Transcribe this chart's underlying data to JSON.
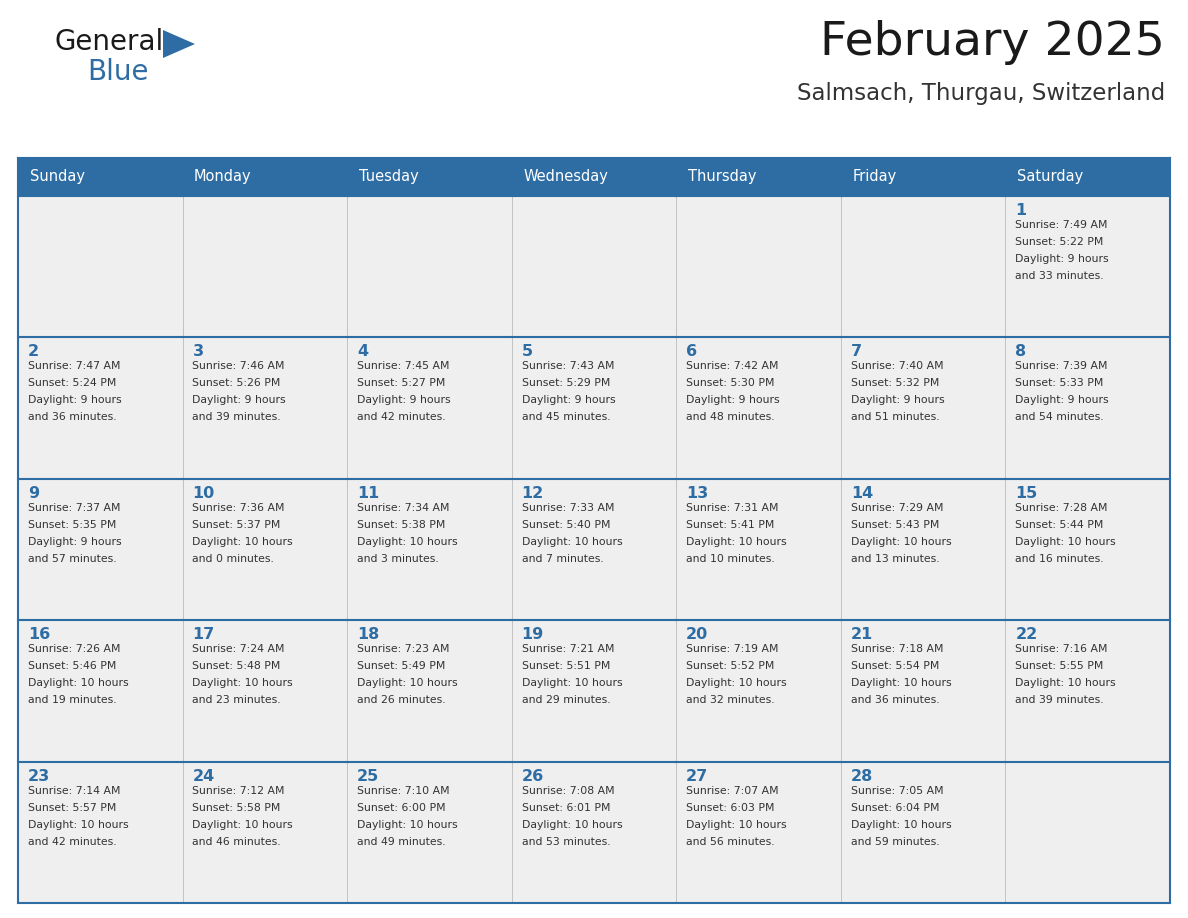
{
  "title": "February 2025",
  "subtitle": "Salmsach, Thurgau, Switzerland",
  "header_bg_color": "#2E6DA4",
  "header_text_color": "#FFFFFF",
  "cell_bg_color": "#EFEFEF",
  "day_number_color": "#2E6DA4",
  "text_color": "#333333",
  "border_color": "#2E6DA4",
  "days_of_week": [
    "Sunday",
    "Monday",
    "Tuesday",
    "Wednesday",
    "Thursday",
    "Friday",
    "Saturday"
  ],
  "weeks": [
    [
      {
        "day": null,
        "info": null
      },
      {
        "day": null,
        "info": null
      },
      {
        "day": null,
        "info": null
      },
      {
        "day": null,
        "info": null
      },
      {
        "day": null,
        "info": null
      },
      {
        "day": null,
        "info": null
      },
      {
        "day": 1,
        "info": "Sunrise: 7:49 AM\nSunset: 5:22 PM\nDaylight: 9 hours\nand 33 minutes."
      }
    ],
    [
      {
        "day": 2,
        "info": "Sunrise: 7:47 AM\nSunset: 5:24 PM\nDaylight: 9 hours\nand 36 minutes."
      },
      {
        "day": 3,
        "info": "Sunrise: 7:46 AM\nSunset: 5:26 PM\nDaylight: 9 hours\nand 39 minutes."
      },
      {
        "day": 4,
        "info": "Sunrise: 7:45 AM\nSunset: 5:27 PM\nDaylight: 9 hours\nand 42 minutes."
      },
      {
        "day": 5,
        "info": "Sunrise: 7:43 AM\nSunset: 5:29 PM\nDaylight: 9 hours\nand 45 minutes."
      },
      {
        "day": 6,
        "info": "Sunrise: 7:42 AM\nSunset: 5:30 PM\nDaylight: 9 hours\nand 48 minutes."
      },
      {
        "day": 7,
        "info": "Sunrise: 7:40 AM\nSunset: 5:32 PM\nDaylight: 9 hours\nand 51 minutes."
      },
      {
        "day": 8,
        "info": "Sunrise: 7:39 AM\nSunset: 5:33 PM\nDaylight: 9 hours\nand 54 minutes."
      }
    ],
    [
      {
        "day": 9,
        "info": "Sunrise: 7:37 AM\nSunset: 5:35 PM\nDaylight: 9 hours\nand 57 minutes."
      },
      {
        "day": 10,
        "info": "Sunrise: 7:36 AM\nSunset: 5:37 PM\nDaylight: 10 hours\nand 0 minutes."
      },
      {
        "day": 11,
        "info": "Sunrise: 7:34 AM\nSunset: 5:38 PM\nDaylight: 10 hours\nand 3 minutes."
      },
      {
        "day": 12,
        "info": "Sunrise: 7:33 AM\nSunset: 5:40 PM\nDaylight: 10 hours\nand 7 minutes."
      },
      {
        "day": 13,
        "info": "Sunrise: 7:31 AM\nSunset: 5:41 PM\nDaylight: 10 hours\nand 10 minutes."
      },
      {
        "day": 14,
        "info": "Sunrise: 7:29 AM\nSunset: 5:43 PM\nDaylight: 10 hours\nand 13 minutes."
      },
      {
        "day": 15,
        "info": "Sunrise: 7:28 AM\nSunset: 5:44 PM\nDaylight: 10 hours\nand 16 minutes."
      }
    ],
    [
      {
        "day": 16,
        "info": "Sunrise: 7:26 AM\nSunset: 5:46 PM\nDaylight: 10 hours\nand 19 minutes."
      },
      {
        "day": 17,
        "info": "Sunrise: 7:24 AM\nSunset: 5:48 PM\nDaylight: 10 hours\nand 23 minutes."
      },
      {
        "day": 18,
        "info": "Sunrise: 7:23 AM\nSunset: 5:49 PM\nDaylight: 10 hours\nand 26 minutes."
      },
      {
        "day": 19,
        "info": "Sunrise: 7:21 AM\nSunset: 5:51 PM\nDaylight: 10 hours\nand 29 minutes."
      },
      {
        "day": 20,
        "info": "Sunrise: 7:19 AM\nSunset: 5:52 PM\nDaylight: 10 hours\nand 32 minutes."
      },
      {
        "day": 21,
        "info": "Sunrise: 7:18 AM\nSunset: 5:54 PM\nDaylight: 10 hours\nand 36 minutes."
      },
      {
        "day": 22,
        "info": "Sunrise: 7:16 AM\nSunset: 5:55 PM\nDaylight: 10 hours\nand 39 minutes."
      }
    ],
    [
      {
        "day": 23,
        "info": "Sunrise: 7:14 AM\nSunset: 5:57 PM\nDaylight: 10 hours\nand 42 minutes."
      },
      {
        "day": 24,
        "info": "Sunrise: 7:12 AM\nSunset: 5:58 PM\nDaylight: 10 hours\nand 46 minutes."
      },
      {
        "day": 25,
        "info": "Sunrise: 7:10 AM\nSunset: 6:00 PM\nDaylight: 10 hours\nand 49 minutes."
      },
      {
        "day": 26,
        "info": "Sunrise: 7:08 AM\nSunset: 6:01 PM\nDaylight: 10 hours\nand 53 minutes."
      },
      {
        "day": 27,
        "info": "Sunrise: 7:07 AM\nSunset: 6:03 PM\nDaylight: 10 hours\nand 56 minutes."
      },
      {
        "day": 28,
        "info": "Sunrise: 7:05 AM\nSunset: 6:04 PM\nDaylight: 10 hours\nand 59 minutes."
      },
      {
        "day": null,
        "info": null
      }
    ]
  ],
  "logo_text_general": "General",
  "logo_text_blue": "Blue",
  "logo_triangle_color": "#2E6DA4",
  "logo_general_color": "#1a1a1a"
}
